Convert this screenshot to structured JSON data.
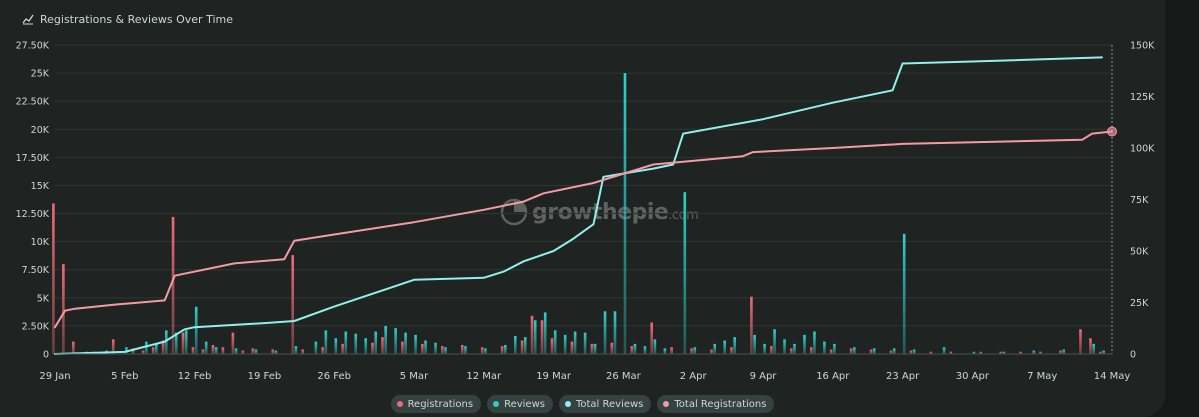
{
  "title": "Registrations & Reviews Over Time",
  "legend": [
    {
      "label": "Registrations",
      "color": "#ef6b78"
    },
    {
      "label": "Reviews",
      "color": "#2ed1c8"
    },
    {
      "label": "Total Reviews",
      "color": "#8ff0ec"
    },
    {
      "label": "Total Registrations",
      "color": "#f59aa4"
    }
  ],
  "watermark": {
    "text": "growthepie",
    "suffix": ".com"
  },
  "chart_data": {
    "type": "bar",
    "x_ticks": [
      "29 Jan",
      "5 Feb",
      "12 Feb",
      "19 Feb",
      "26 Feb",
      "5 Mar",
      "12 Mar",
      "19 Mar",
      "26 Mar",
      "2 Apr",
      "9 Apr",
      "16 Apr",
      "23 Apr",
      "30 Apr",
      "7 May",
      "14 May"
    ],
    "y_left_ticks": [
      "0",
      "2.50K",
      "5K",
      "7.50K",
      "10K",
      "12.50K",
      "15K",
      "17.50K",
      "20K",
      "22.50K",
      "25K",
      "27.50K"
    ],
    "y_right_ticks": [
      "0",
      "25K",
      "50K",
      "75K",
      "100K",
      "125K",
      "150K"
    ],
    "y_left_range": [
      0,
      27500
    ],
    "y_right_range": [
      0,
      150000
    ],
    "x_range": [
      "29 Jan",
      "14 May"
    ],
    "grid": true,
    "legend_position": "bottom-center",
    "series": [
      {
        "name": "Registrations",
        "axis": "left",
        "kind": "bar",
        "color": "#ef6b78",
        "values": [
          {
            "x": "29 Jan",
            "y": 13400
          },
          {
            "x": "30 Jan",
            "y": 8000
          },
          {
            "x": "31 Jan",
            "y": 1100
          },
          {
            "x": "2 Feb",
            "y": 200
          },
          {
            "x": "4 Feb",
            "y": 1300
          },
          {
            "x": "6 Feb",
            "y": 500
          },
          {
            "x": "7 Feb",
            "y": 300
          },
          {
            "x": "8 Feb",
            "y": 600
          },
          {
            "x": "9 Feb",
            "y": 1200
          },
          {
            "x": "10 Feb",
            "y": 12200
          },
          {
            "x": "11 Feb",
            "y": 1900
          },
          {
            "x": "12 Feb",
            "y": 600
          },
          {
            "x": "13 Feb",
            "y": 400
          },
          {
            "x": "14 Feb",
            "y": 800
          },
          {
            "x": "15 Feb",
            "y": 600
          },
          {
            "x": "16 Feb",
            "y": 1900
          },
          {
            "x": "17 Feb",
            "y": 300
          },
          {
            "x": "18 Feb",
            "y": 500
          },
          {
            "x": "20 Feb",
            "y": 400
          },
          {
            "x": "22 Feb",
            "y": 8800
          },
          {
            "x": "23 Feb",
            "y": 400
          },
          {
            "x": "25 Feb",
            "y": 600
          },
          {
            "x": "27 Feb",
            "y": 900
          },
          {
            "x": "1 Mar",
            "y": 1000
          },
          {
            "x": "2 Mar",
            "y": 1500
          },
          {
            "x": "4 Mar",
            "y": 1100
          },
          {
            "x": "6 Mar",
            "y": 900
          },
          {
            "x": "8 Mar",
            "y": 700
          },
          {
            "x": "10 Mar",
            "y": 800
          },
          {
            "x": "12 Mar",
            "y": 600
          },
          {
            "x": "14 Mar",
            "y": 700
          },
          {
            "x": "16 Mar",
            "y": 1200
          },
          {
            "x": "17 Mar",
            "y": 3400
          },
          {
            "x": "18 Mar",
            "y": 3000
          },
          {
            "x": "19 Mar",
            "y": 1400
          },
          {
            "x": "21 Mar",
            "y": 1100
          },
          {
            "x": "23 Mar",
            "y": 900
          },
          {
            "x": "25 Mar",
            "y": 1000
          },
          {
            "x": "27 Mar",
            "y": 700
          },
          {
            "x": "29 Mar",
            "y": 2800
          },
          {
            "x": "31 Mar",
            "y": 600
          },
          {
            "x": "2 Apr",
            "y": 500
          },
          {
            "x": "4 Apr",
            "y": 400
          },
          {
            "x": "6 Apr",
            "y": 600
          },
          {
            "x": "8 Apr",
            "y": 5100
          },
          {
            "x": "10 Apr",
            "y": 700
          },
          {
            "x": "12 Apr",
            "y": 500
          },
          {
            "x": "14 Apr",
            "y": 600
          },
          {
            "x": "16 Apr",
            "y": 400
          },
          {
            "x": "18 Apr",
            "y": 500
          },
          {
            "x": "20 Apr",
            "y": 400
          },
          {
            "x": "22 Apr",
            "y": 300
          },
          {
            "x": "24 Apr",
            "y": 300
          },
          {
            "x": "26 Apr",
            "y": 200
          },
          {
            "x": "28 Apr",
            "y": 200
          },
          {
            "x": "1 May",
            "y": 200
          },
          {
            "x": "3 May",
            "y": 200
          },
          {
            "x": "5 May",
            "y": 200
          },
          {
            "x": "7 May",
            "y": 200
          },
          {
            "x": "9 May",
            "y": 300
          },
          {
            "x": "11 May",
            "y": 2200
          },
          {
            "x": "12 May",
            "y": 1400
          },
          {
            "x": "13 May",
            "y": 200
          }
        ]
      },
      {
        "name": "Reviews",
        "axis": "left",
        "kind": "bar",
        "color": "#2ed1c8",
        "values": [
          {
            "x": "30 Jan",
            "y": 100
          },
          {
            "x": "1 Feb",
            "y": 200
          },
          {
            "x": "3 Feb",
            "y": 300
          },
          {
            "x": "5 Feb",
            "y": 600
          },
          {
            "x": "7 Feb",
            "y": 1100
          },
          {
            "x": "8 Feb",
            "y": 900
          },
          {
            "x": "9 Feb",
            "y": 2100
          },
          {
            "x": "10 Feb",
            "y": 1900
          },
          {
            "x": "11 Feb",
            "y": 2100
          },
          {
            "x": "12 Feb",
            "y": 4200
          },
          {
            "x": "13 Feb",
            "y": 1100
          },
          {
            "x": "14 Feb",
            "y": 600
          },
          {
            "x": "16 Feb",
            "y": 500
          },
          {
            "x": "18 Feb",
            "y": 400
          },
          {
            "x": "20 Feb",
            "y": 300
          },
          {
            "x": "22 Feb",
            "y": 700
          },
          {
            "x": "24 Feb",
            "y": 1100
          },
          {
            "x": "25 Feb",
            "y": 2100
          },
          {
            "x": "26 Feb",
            "y": 1400
          },
          {
            "x": "27 Feb",
            "y": 2000
          },
          {
            "x": "28 Feb",
            "y": 1800
          },
          {
            "x": "29 Feb",
            "y": 1400
          },
          {
            "x": "1 Mar",
            "y": 2000
          },
          {
            "x": "2 Mar",
            "y": 2500
          },
          {
            "x": "3 Mar",
            "y": 2300
          },
          {
            "x": "4 Mar",
            "y": 1900
          },
          {
            "x": "5 Mar",
            "y": 1700
          },
          {
            "x": "6 Mar",
            "y": 1200
          },
          {
            "x": "7 Mar",
            "y": 1000
          },
          {
            "x": "8 Mar",
            "y": 600
          },
          {
            "x": "10 Mar",
            "y": 700
          },
          {
            "x": "12 Mar",
            "y": 500
          },
          {
            "x": "14 Mar",
            "y": 800
          },
          {
            "x": "15 Mar",
            "y": 1600
          },
          {
            "x": "16 Mar",
            "y": 1500
          },
          {
            "x": "17 Mar",
            "y": 3000
          },
          {
            "x": "18 Mar",
            "y": 3700
          },
          {
            "x": "19 Mar",
            "y": 2100
          },
          {
            "x": "20 Mar",
            "y": 1700
          },
          {
            "x": "21 Mar",
            "y": 2000
          },
          {
            "x": "22 Mar",
            "y": 1900
          },
          {
            "x": "23 Mar",
            "y": 900
          },
          {
            "x": "24 Mar",
            "y": 3800
          },
          {
            "x": "25 Mar",
            "y": 3800
          },
          {
            "x": "26 Mar",
            "y": 25000
          },
          {
            "x": "27 Mar",
            "y": 900
          },
          {
            "x": "28 Mar",
            "y": 700
          },
          {
            "x": "29 Mar",
            "y": 1300
          },
          {
            "x": "30 Mar",
            "y": 500
          },
          {
            "x": "1 Apr",
            "y": 14400
          },
          {
            "x": "2 Apr",
            "y": 600
          },
          {
            "x": "4 Apr",
            "y": 900
          },
          {
            "x": "5 Apr",
            "y": 1200
          },
          {
            "x": "6 Apr",
            "y": 1500
          },
          {
            "x": "8 Apr",
            "y": 1700
          },
          {
            "x": "9 Apr",
            "y": 900
          },
          {
            "x": "10 Apr",
            "y": 2200
          },
          {
            "x": "11 Apr",
            "y": 1300
          },
          {
            "x": "12 Apr",
            "y": 900
          },
          {
            "x": "13 Apr",
            "y": 1700
          },
          {
            "x": "14 Apr",
            "y": 2000
          },
          {
            "x": "15 Apr",
            "y": 1100
          },
          {
            "x": "16 Apr",
            "y": 900
          },
          {
            "x": "18 Apr",
            "y": 600
          },
          {
            "x": "20 Apr",
            "y": 500
          },
          {
            "x": "22 Apr",
            "y": 500
          },
          {
            "x": "23 Apr",
            "y": 10700
          },
          {
            "x": "24 Apr",
            "y": 400
          },
          {
            "x": "27 Apr",
            "y": 600
          },
          {
            "x": "30 Apr",
            "y": 200
          },
          {
            "x": "3 May",
            "y": 200
          },
          {
            "x": "6 May",
            "y": 300
          },
          {
            "x": "9 May",
            "y": 400
          },
          {
            "x": "12 May",
            "y": 900
          },
          {
            "x": "13 May",
            "y": 300
          }
        ]
      },
      {
        "name": "Total Reviews",
        "axis": "right",
        "kind": "line",
        "color": "#8ff0ec",
        "values": [
          {
            "x": "29 Jan",
            "y": 0
          },
          {
            "x": "5 Feb",
            "y": 1000
          },
          {
            "x": "9 Feb",
            "y": 6000
          },
          {
            "x": "11 Feb",
            "y": 12000
          },
          {
            "x": "12 Feb",
            "y": 13000
          },
          {
            "x": "19 Feb",
            "y": 15000
          },
          {
            "x": "22 Feb",
            "y": 16000
          },
          {
            "x": "26 Feb",
            "y": 23000
          },
          {
            "x": "5 Mar",
            "y": 36000
          },
          {
            "x": "12 Mar",
            "y": 37000
          },
          {
            "x": "14 Mar",
            "y": 40000
          },
          {
            "x": "16 Mar",
            "y": 45000
          },
          {
            "x": "19 Mar",
            "y": 50000
          },
          {
            "x": "21 Mar",
            "y": 56000
          },
          {
            "x": "23 Mar",
            "y": 63000
          },
          {
            "x": "24 Mar",
            "y": 86000
          },
          {
            "x": "29 Mar",
            "y": 90000
          },
          {
            "x": "31 Mar",
            "y": 92000
          },
          {
            "x": "1 Apr",
            "y": 107000
          },
          {
            "x": "9 Apr",
            "y": 114000
          },
          {
            "x": "16 Apr",
            "y": 122000
          },
          {
            "x": "22 Apr",
            "y": 128000
          },
          {
            "x": "23 Apr",
            "y": 141000
          },
          {
            "x": "30 Apr",
            "y": 142000
          },
          {
            "x": "13 May",
            "y": 144000
          }
        ]
      },
      {
        "name": "Total Registrations",
        "axis": "right",
        "kind": "line",
        "color": "#f59aa4",
        "values": [
          {
            "x": "29 Jan",
            "y": 13000
          },
          {
            "x": "30 Jan",
            "y": 21000
          },
          {
            "x": "31 Jan",
            "y": 22000
          },
          {
            "x": "4 Feb",
            "y": 24000
          },
          {
            "x": "9 Feb",
            "y": 26000
          },
          {
            "x": "10 Feb",
            "y": 38000
          },
          {
            "x": "16 Feb",
            "y": 44000
          },
          {
            "x": "21 Feb",
            "y": 46000
          },
          {
            "x": "22 Feb",
            "y": 55000
          },
          {
            "x": "26 Feb",
            "y": 58000
          },
          {
            "x": "5 Mar",
            "y": 64000
          },
          {
            "x": "12 Mar",
            "y": 70000
          },
          {
            "x": "16 Mar",
            "y": 74000
          },
          {
            "x": "18 Mar",
            "y": 78000
          },
          {
            "x": "23 Mar",
            "y": 83000
          },
          {
            "x": "29 Mar",
            "y": 92000
          },
          {
            "x": "7 Apr",
            "y": 96000
          },
          {
            "x": "8 Apr",
            "y": 98000
          },
          {
            "x": "16 Apr",
            "y": 100000
          },
          {
            "x": "23 Apr",
            "y": 102000
          },
          {
            "x": "11 May",
            "y": 104000
          },
          {
            "x": "12 May",
            "y": 107000
          },
          {
            "x": "14 May",
            "y": 108000
          }
        ]
      }
    ]
  }
}
